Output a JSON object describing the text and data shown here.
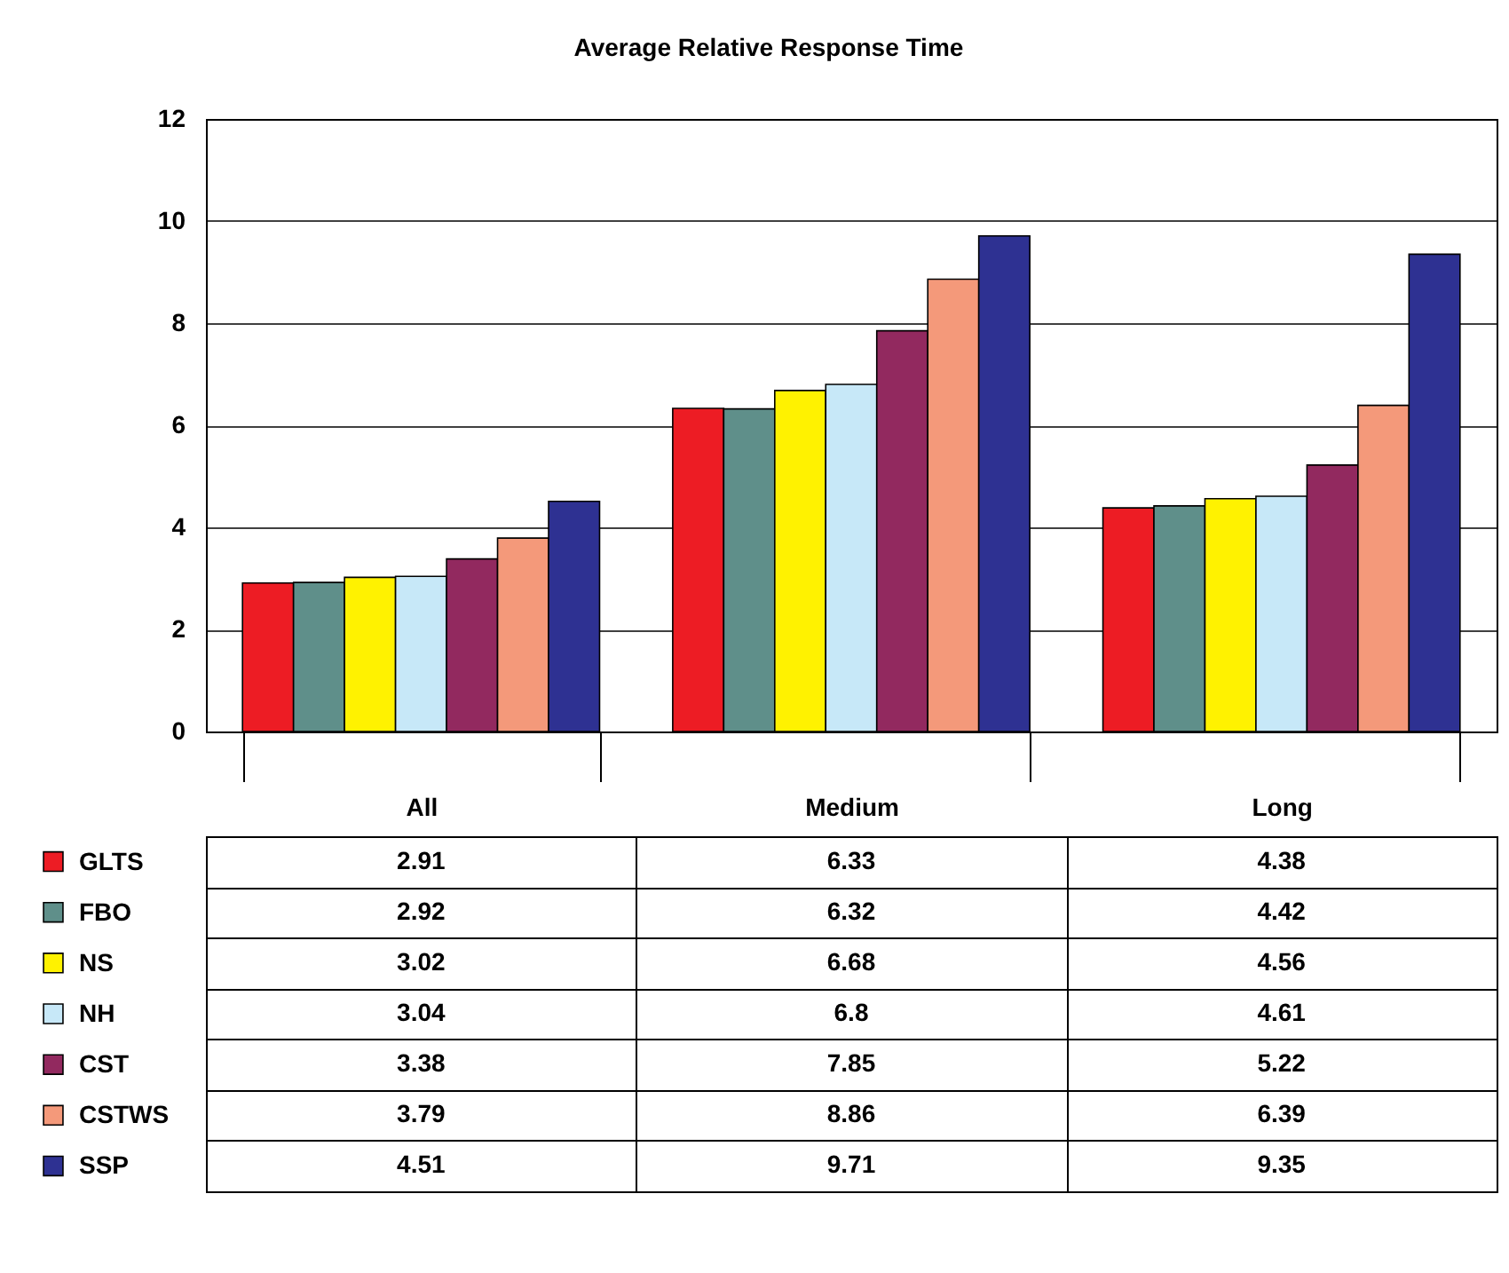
{
  "chart_data": {
    "type": "bar",
    "title": "Average Relative Response Time",
    "categories": [
      "All",
      "Medium",
      "Long"
    ],
    "series": [
      {
        "name": "GLTS",
        "color": "#ed1c24",
        "values": [
          2.91,
          6.33,
          4.38
        ]
      },
      {
        "name": "FBO",
        "color": "#5f8f8a",
        "values": [
          2.92,
          6.32,
          4.42
        ]
      },
      {
        "name": "NS",
        "color": "#fff200",
        "values": [
          3.02,
          6.68,
          4.56
        ]
      },
      {
        "name": "NH",
        "color": "#c7e8f8",
        "values": [
          3.04,
          6.8,
          4.61
        ]
      },
      {
        "name": "CST",
        "color": "#92295f",
        "values": [
          3.38,
          7.85,
          5.22
        ]
      },
      {
        "name": "CSTWS",
        "color": "#f4997a",
        "values": [
          3.79,
          8.86,
          6.39
        ]
      },
      {
        "name": "SSP",
        "color": "#2e3192",
        "values": [
          4.51,
          9.71,
          9.35
        ]
      }
    ],
    "ylim": [
      0,
      12
    ],
    "yticks": [
      0,
      2,
      4,
      6,
      8,
      10,
      12
    ],
    "grid": "y",
    "legend": "bottom",
    "data_labels": true
  }
}
